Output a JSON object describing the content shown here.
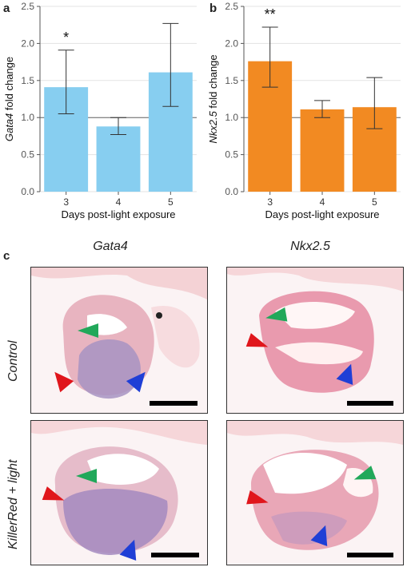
{
  "panels": {
    "a": "a",
    "b": "b",
    "c": "c"
  },
  "chart_data": [
    {
      "type": "bar",
      "categories": [
        "3",
        "4",
        "5"
      ],
      "values": [
        1.41,
        0.88,
        1.61
      ],
      "error_low": [
        1.05,
        0.77,
        1.15
      ],
      "error_high": [
        1.91,
        1.0,
        2.27
      ],
      "significance": [
        "*",
        "",
        ""
      ],
      "ylabel_gene": "Gata4",
      "ylabel_suffix": " fold change",
      "xlabel": "Days post-light exposure",
      "ylim": [
        0,
        2.5
      ],
      "yticks": [
        "0.0",
        "0.5",
        "1.0",
        "1.5",
        "2.0",
        "2.5"
      ],
      "reference_line": 1.0,
      "color": "#87cef0",
      "grid": true
    },
    {
      "type": "bar",
      "categories": [
        "3",
        "4",
        "5"
      ],
      "values": [
        1.76,
        1.11,
        1.14
      ],
      "error_low": [
        1.41,
        1.0,
        0.85
      ],
      "error_high": [
        2.22,
        1.23,
        1.54
      ],
      "significance": [
        "**",
        "",
        ""
      ],
      "ylabel_gene": "Nkx2.5",
      "ylabel_suffix": " fold change",
      "xlabel": "Days post-light exposure",
      "ylim": [
        0,
        2.5
      ],
      "yticks": [
        "0.0",
        "0.5",
        "1.0",
        "1.5",
        "2.0",
        "2.5"
      ],
      "reference_line": 1.0,
      "color": "#f28a22",
      "grid": true
    }
  ],
  "images": {
    "columns": [
      "Gata4",
      "Nkx2.5"
    ],
    "rows": [
      "Control",
      "KillerRed + light"
    ],
    "arrow_colors": {
      "red": "#e0161c",
      "green": "#21a85a",
      "blue": "#1f3fd6"
    }
  }
}
